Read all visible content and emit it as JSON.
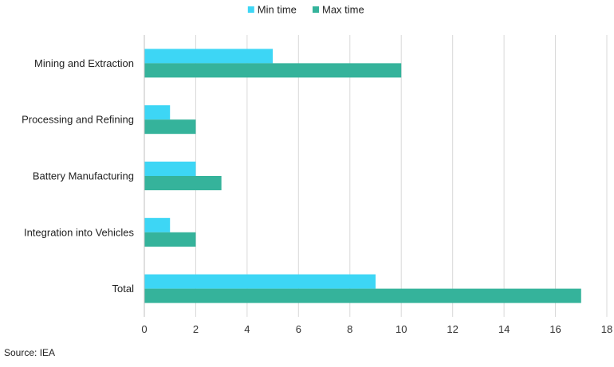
{
  "chart_data": {
    "type": "bar",
    "orientation": "horizontal",
    "categories": [
      "Mining and Extraction",
      "Processing and Refining",
      "Battery Manufacturing",
      "Integration into Vehicles",
      "Total"
    ],
    "series": [
      {
        "name": "Min time",
        "values": [
          5,
          1,
          2,
          1,
          9
        ],
        "color": "#3dd6f5"
      },
      {
        "name": "Max time",
        "values": [
          10,
          2,
          3,
          2,
          17
        ],
        "color": "#35b39b"
      }
    ],
    "xlim": [
      0,
      18
    ],
    "xticks": [
      0,
      2,
      4,
      6,
      8,
      10,
      12,
      14,
      16,
      18
    ],
    "grid": true,
    "legend_position": "top-center",
    "source": "Source: IEA",
    "gridline_color": "#d9d9d9",
    "axis_color": "#bfbfbf"
  }
}
